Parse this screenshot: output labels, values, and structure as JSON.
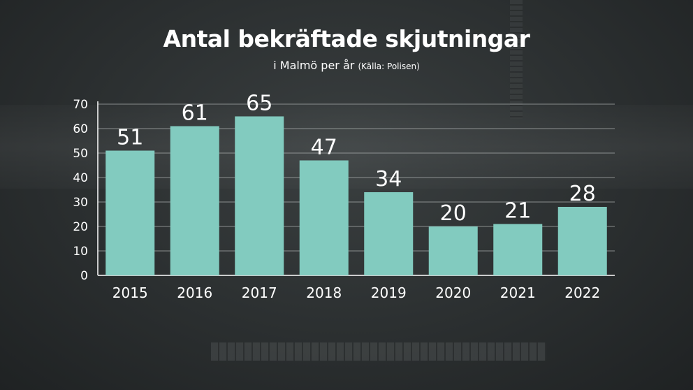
{
  "colors": {
    "bar": "#82cbbf",
    "text": "#ffffff",
    "grid": "#a9adad"
  },
  "header": {
    "title": "Antal bekräftade skjutningar",
    "subtitle": "i Malmö per år",
    "source": "(Källa: Polisen)"
  },
  "chart_data": {
    "type": "bar",
    "title": "Antal bekräftade skjutningar",
    "subtitle": "i Malmö per år (Källa: Polisen)",
    "categories": [
      "2015",
      "2016",
      "2017",
      "2018",
      "2019",
      "2020",
      "2021",
      "2022"
    ],
    "values": [
      51,
      61,
      65,
      47,
      34,
      20,
      21,
      28
    ],
    "xlabel": "",
    "ylabel": "",
    "ylim": [
      0,
      70
    ],
    "yticks": [
      0,
      10,
      20,
      30,
      40,
      50,
      60,
      70
    ],
    "grid": true,
    "legend": "none",
    "data_labels": true
  }
}
